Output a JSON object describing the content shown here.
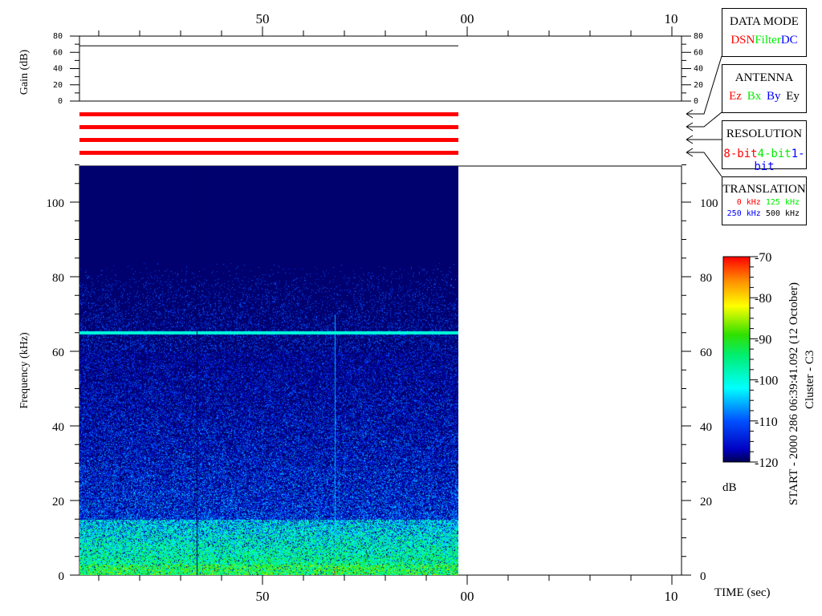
{
  "chart_data": {
    "type": "heatmap",
    "xlabel": "TIME (sec)",
    "ylabel": "Frequency (kHz)",
    "ylim": [
      0,
      110
    ],
    "x_tick_labels": [
      "50",
      "00",
      "10"
    ],
    "y_tick_labels": [
      "0",
      "20",
      "40",
      "60",
      "80",
      "100"
    ],
    "data_extent_fraction_of_time_axis": 0.63,
    "features": {
      "persistent_line_khz": 65,
      "noise_floor_increase_below_khz": 15,
      "dark_above_khz": 83
    },
    "gain_panel": {
      "ylabel": "Gain (dB)",
      "ylim": [
        0,
        80
      ],
      "tick_labels": [
        "0",
        "20",
        "40",
        "60",
        "80"
      ],
      "gain_value_db": 68
    },
    "colorbar": {
      "label": "dB",
      "range": [
        -120,
        -70
      ],
      "tick_labels": [
        "-70",
        "-80",
        "-90",
        "-100",
        "-110",
        "-120"
      ],
      "colormap": "jet"
    }
  },
  "side_title": "START - 2000 286 06:39:41.092 (12 October)",
  "side_subtitle": "Cluster - C3",
  "legend_boxes": {
    "data_mode": {
      "title": "DATA MODE",
      "items": [
        {
          "label": "DSN",
          "color": "#ff0000"
        },
        {
          "label": "Filter",
          "color": "#00ee00"
        },
        {
          "label": "DC",
          "color": "#0000ff"
        }
      ]
    },
    "antenna": {
      "title": "ANTENNA",
      "items": [
        {
          "label": "Ez",
          "color": "#ff0000"
        },
        {
          "label": "Bx",
          "color": "#00ee00"
        },
        {
          "label": "By",
          "color": "#0000ff"
        },
        {
          "label": "Ey",
          "color": "#000000"
        }
      ]
    },
    "resolution": {
      "title": "RESOLUTION",
      "items": [
        {
          "label": "8-bit",
          "color": "#ff0000"
        },
        {
          "label": "4-bit",
          "color": "#00ee00"
        },
        {
          "label": "1-bit",
          "color": "#0000ff"
        }
      ]
    },
    "translation": {
      "title": "TRANSLATION",
      "items": [
        {
          "label": "0 kHz",
          "color": "#ff0000"
        },
        {
          "label": "125 kHz",
          "color": "#00ee00"
        },
        {
          "label": "250 kHz",
          "color": "#0000ff"
        },
        {
          "label": "500 kHz",
          "color": "#000000"
        }
      ]
    }
  },
  "status_bar_color": "#ff0000"
}
